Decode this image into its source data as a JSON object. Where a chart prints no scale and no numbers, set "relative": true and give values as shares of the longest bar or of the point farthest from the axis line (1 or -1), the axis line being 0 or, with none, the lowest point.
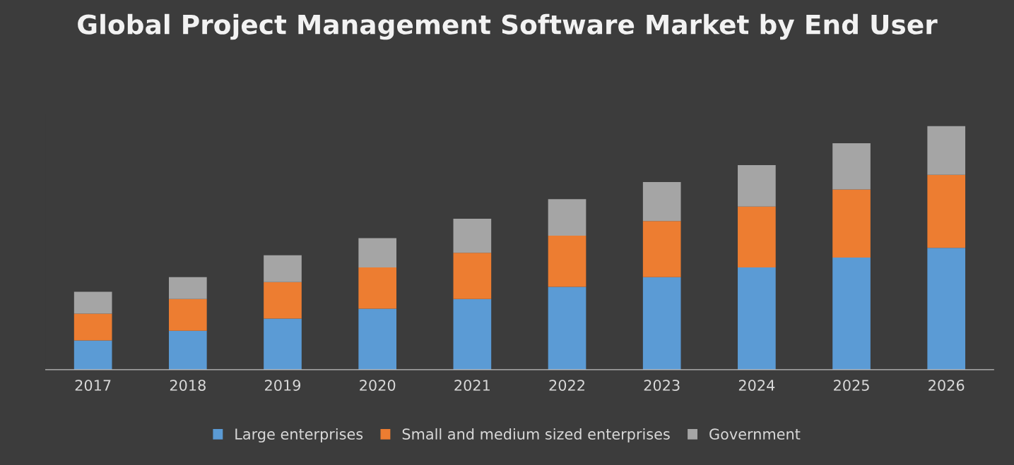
{
  "chart_data": {
    "type": "bar",
    "title": "Global Project Management Software Market by End User",
    "categories": [
      "2017",
      "2018",
      "2019",
      "2020",
      "2021",
      "2022",
      "2023",
      "2024",
      "2025",
      "2026"
    ],
    "stacked": true,
    "relative": true,
    "legend": "bottom",
    "series": [
      {
        "name": "Large enterprises",
        "color": "#5b9bd5",
        "values": [
          0.12,
          0.16,
          0.21,
          0.25,
          0.29,
          0.34,
          0.38,
          0.42,
          0.46,
          0.5
        ]
      },
      {
        "name": "Small and medium sized enterprises",
        "color": "#ed7d31",
        "values": [
          0.11,
          0.13,
          0.15,
          0.17,
          0.19,
          0.21,
          0.23,
          0.25,
          0.28,
          0.3
        ]
      },
      {
        "name": "Government",
        "color": "#a5a5a5",
        "values": [
          0.09,
          0.09,
          0.11,
          0.12,
          0.14,
          0.15,
          0.16,
          0.17,
          0.19,
          0.2
        ]
      }
    ]
  }
}
